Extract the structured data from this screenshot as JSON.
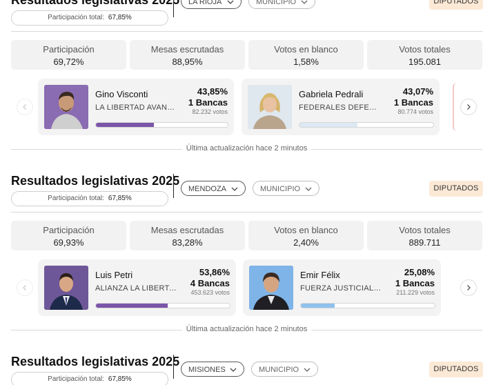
{
  "widgets": [
    {
      "title": "Resultados legislativas 2025",
      "participation_label": "Participación total:",
      "participation_value": "67,85%",
      "province": "LA RIOJA",
      "municipio": "MUNICIPIO",
      "chamber": "DIPUTADOS",
      "stats": [
        {
          "label": "Participación",
          "value": "69,72%"
        },
        {
          "label": "Mesas escrutadas",
          "value": "88,95%"
        },
        {
          "label": "Votos en blanco",
          "value": "1,58%"
        },
        {
          "label": "Votos totales",
          "value": "195.081"
        }
      ],
      "candidates": [
        {
          "name": "Gino Visconti",
          "party": "LA LIBERTAD AVANZA",
          "pct": "43,85%",
          "seats": "1 Bancas",
          "votes": "82.232 votos",
          "bar_fraction": 0.4385,
          "color": "#7b55a8"
        },
        {
          "name": "Gabriela Pedrali",
          "party": "FEDERALES DEFENDEMOS LA RIOJA",
          "pct": "43,07%",
          "seats": "1 Bancas",
          "votes": "80.774 votos",
          "bar_fraction": 0.4307,
          "color": "#dce8f4"
        }
      ],
      "updated": "Última actualización hace 2 minutos"
    },
    {
      "title": "Resultados legislativas 2025",
      "participation_label": "Participación total:",
      "participation_value": "67,85%",
      "province": "MENDOZA",
      "municipio": "MUNICIPIO",
      "chamber": "DIPUTADOS",
      "stats": [
        {
          "label": "Participación",
          "value": "69,93%"
        },
        {
          "label": "Mesas escrutadas",
          "value": "83,28%"
        },
        {
          "label": "Votos en blanco",
          "value": "2,40%"
        },
        {
          "label": "Votos totales",
          "value": "889.711"
        }
      ],
      "candidates": [
        {
          "name": "Luis Petri",
          "party": "ALIANZA LA LIBERTAD AVANZA",
          "pct": "53,86%",
          "seats": "4 Bancas",
          "votes": "453.623 votos",
          "bar_fraction": 0.5386,
          "color": "#7b55a8"
        },
        {
          "name": "Emir Félix",
          "party": "FUERZA JUSTICIALISTA MENDOZA",
          "pct": "25,08%",
          "seats": "1 Bancas",
          "votes": "211.229 votos",
          "bar_fraction": 0.2508,
          "color": "#8fc1ec"
        }
      ],
      "updated": "Última actualización hace 2 minutos"
    },
    {
      "title": "Resultados legislativas 2025",
      "participation_label": "Participación total:",
      "participation_value": "67,85%",
      "province": "MISIONES",
      "municipio": "MUNICIPIO",
      "chamber": "DIPUTADOS"
    }
  ]
}
